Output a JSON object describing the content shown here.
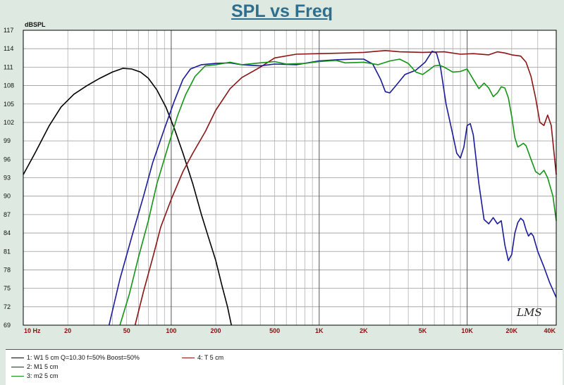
{
  "chart_data": {
    "type": "line",
    "title": "SPL vs Freq",
    "ylabel": "dBSPL",
    "xscale": "log",
    "xlim": [
      10,
      40000
    ],
    "ylim": [
      69,
      117
    ],
    "yticks": [
      117,
      114,
      111,
      108,
      105,
      102,
      99,
      96,
      93,
      90,
      87,
      84,
      81,
      78,
      75,
      72,
      69
    ],
    "xticks": [
      {
        "value": 10,
        "label": "10  Hz"
      },
      {
        "value": 20,
        "label": "20"
      },
      {
        "value": 50,
        "label": "50"
      },
      {
        "value": 100,
        "label": "100"
      },
      {
        "value": 200,
        "label": "200"
      },
      {
        "value": 500,
        "label": "500"
      },
      {
        "value": 1000,
        "label": "1K"
      },
      {
        "value": 2000,
        "label": "2K"
      },
      {
        "value": 5000,
        "label": "5K"
      },
      {
        "value": 10000,
        "label": "10K"
      },
      {
        "value": 20000,
        "label": "20K"
      },
      {
        "value": 40000,
        "label": "40K"
      }
    ],
    "grid": true,
    "legend_position": "bottom",
    "watermark": "LMS",
    "series": [
      {
        "name": "1: W1 5 cm Q=10.30 f=50% Boost=50%",
        "color": "#000000",
        "points": [
          [
            10,
            93.5
          ],
          [
            12,
            97
          ],
          [
            15,
            101.5
          ],
          [
            18,
            104.5
          ],
          [
            22,
            106.6
          ],
          [
            27,
            108
          ],
          [
            33,
            109.2
          ],
          [
            40,
            110.2
          ],
          [
            47,
            110.8
          ],
          [
            54,
            110.7
          ],
          [
            62,
            110.2
          ],
          [
            70,
            109.2
          ],
          [
            80,
            107.3
          ],
          [
            92,
            104.5
          ],
          [
            105,
            101
          ],
          [
            120,
            97
          ],
          [
            140,
            92
          ],
          [
            160,
            87
          ],
          [
            180,
            83
          ],
          [
            200,
            79.5
          ],
          [
            220,
            75.5
          ],
          [
            240,
            72
          ],
          [
            255,
            69
          ]
        ]
      },
      {
        "name": "4: T 5 cm",
        "color": "#8b1414",
        "points": [
          [
            57,
            69
          ],
          [
            65,
            74.5
          ],
          [
            75,
            80
          ],
          [
            85,
            85
          ],
          [
            100,
            89.5
          ],
          [
            120,
            94
          ],
          [
            140,
            97
          ],
          [
            170,
            100.5
          ],
          [
            200,
            104
          ],
          [
            250,
            107.5
          ],
          [
            300,
            109.3
          ],
          [
            400,
            111
          ],
          [
            500,
            112.5
          ],
          [
            700,
            113.1
          ],
          [
            1000,
            113.2
          ],
          [
            1500,
            113.3
          ],
          [
            2000,
            113.4
          ],
          [
            2800,
            113.7
          ],
          [
            3500,
            113.5
          ],
          [
            5000,
            113.4
          ],
          [
            7000,
            113.5
          ],
          [
            9000,
            113.1
          ],
          [
            11000,
            113.2
          ],
          [
            14000,
            113.0
          ],
          [
            16000,
            113.5
          ],
          [
            18000,
            113.3
          ],
          [
            20000,
            113.0
          ],
          [
            23000,
            112.8
          ],
          [
            25000,
            111.8
          ],
          [
            27000,
            109.5
          ],
          [
            29000,
            106
          ],
          [
            31000,
            102
          ],
          [
            33000,
            101.5
          ],
          [
            35000,
            103.2
          ],
          [
            37000,
            101.5
          ],
          [
            40000,
            93.5
          ]
        ]
      },
      {
        "name": "2: M1 5 cm",
        "color": "#1a1a9a",
        "points": [
          [
            38,
            69
          ],
          [
            45,
            76.5
          ],
          [
            55,
            84
          ],
          [
            65,
            90
          ],
          [
            75,
            95.5
          ],
          [
            90,
            101
          ],
          [
            105,
            105.5
          ],
          [
            120,
            109
          ],
          [
            135,
            110.7
          ],
          [
            160,
            111.4
          ],
          [
            200,
            111.6
          ],
          [
            250,
            111.7
          ],
          [
            300,
            111.4
          ],
          [
            400,
            111.2
          ],
          [
            500,
            111.5
          ],
          [
            700,
            111.4
          ],
          [
            1000,
            112.0
          ],
          [
            1300,
            112.2
          ],
          [
            1700,
            112.3
          ],
          [
            2000,
            112.3
          ],
          [
            2300,
            111.5
          ],
          [
            2600,
            109
          ],
          [
            2800,
            107
          ],
          [
            3000,
            106.8
          ],
          [
            3300,
            108
          ],
          [
            3800,
            109.8
          ],
          [
            4500,
            110.5
          ],
          [
            5200,
            111.8
          ],
          [
            5800,
            113.6
          ],
          [
            6200,
            113.3
          ],
          [
            6600,
            111
          ],
          [
            7200,
            105
          ],
          [
            8000,
            100
          ],
          [
            8500,
            97
          ],
          [
            9000,
            96.2
          ],
          [
            9500,
            98
          ],
          [
            10000,
            101.5
          ],
          [
            10500,
            101.8
          ],
          [
            11000,
            100
          ],
          [
            12000,
            92
          ],
          [
            13000,
            86.2
          ],
          [
            14000,
            85.5
          ],
          [
            15000,
            86.5
          ],
          [
            16000,
            85.5
          ],
          [
            17000,
            86.0
          ],
          [
            18000,
            82
          ],
          [
            19000,
            79.5
          ],
          [
            20000,
            80.5
          ],
          [
            21000,
            84
          ],
          [
            22000,
            85.7
          ],
          [
            23000,
            86.4
          ],
          [
            24000,
            86.0
          ],
          [
            25000,
            84.5
          ],
          [
            26000,
            83.5
          ],
          [
            27000,
            84.0
          ],
          [
            28000,
            83.5
          ],
          [
            30000,
            81
          ],
          [
            33000,
            78.5
          ],
          [
            36000,
            76
          ],
          [
            40000,
            73.5
          ]
        ]
      },
      {
        "name": "3: m2 5 cm",
        "color": "#149414",
        "points": [
          [
            45,
            69
          ],
          [
            52,
            74
          ],
          [
            60,
            80
          ],
          [
            70,
            86
          ],
          [
            80,
            92
          ],
          [
            95,
            98
          ],
          [
            110,
            103
          ],
          [
            125,
            106.5
          ],
          [
            145,
            109.5
          ],
          [
            170,
            111.2
          ],
          [
            200,
            111.4
          ],
          [
            250,
            111.8
          ],
          [
            300,
            111.4
          ],
          [
            400,
            111.7
          ],
          [
            500,
            111.9
          ],
          [
            600,
            111.5
          ],
          [
            800,
            111.6
          ],
          [
            1000,
            111.9
          ],
          [
            1300,
            112.1
          ],
          [
            1500,
            111.7
          ],
          [
            2000,
            111.8
          ],
          [
            2500,
            111.4
          ],
          [
            3000,
            112.0
          ],
          [
            3500,
            112.3
          ],
          [
            4000,
            111.6
          ],
          [
            4500,
            110.2
          ],
          [
            5000,
            109.8
          ],
          [
            5500,
            110.5
          ],
          [
            6000,
            111.2
          ],
          [
            6500,
            111.3
          ],
          [
            7000,
            111
          ],
          [
            8000,
            110.2
          ],
          [
            9000,
            110.3
          ],
          [
            10000,
            110.7
          ],
          [
            11000,
            109
          ],
          [
            12000,
            107.5
          ],
          [
            13000,
            108.4
          ],
          [
            14000,
            107.6
          ],
          [
            15000,
            106.2
          ],
          [
            16000,
            106.8
          ],
          [
            17000,
            107.8
          ],
          [
            18000,
            107.6
          ],
          [
            19000,
            106
          ],
          [
            20000,
            103
          ],
          [
            21000,
            99.5
          ],
          [
            22000,
            98.0
          ],
          [
            23000,
            98.3
          ],
          [
            24000,
            98.6
          ],
          [
            25000,
            98.2
          ],
          [
            27000,
            96
          ],
          [
            29000,
            94
          ],
          [
            31000,
            93.5
          ],
          [
            33000,
            94.2
          ],
          [
            35000,
            93
          ],
          [
            38000,
            90
          ],
          [
            40000,
            86
          ]
        ]
      }
    ]
  },
  "legend": {
    "items": [
      {
        "label": "1: W1 5 cm Q=10.30 f=50% Boost=50%",
        "color": "#000000"
      },
      {
        "label": "2: M1 5 cm",
        "color": "#1a1a9a"
      },
      {
        "label": "3: m2 5 cm",
        "color": "#149414"
      },
      {
        "label": "4: T 5 cm",
        "color": "#8b1414"
      }
    ]
  }
}
